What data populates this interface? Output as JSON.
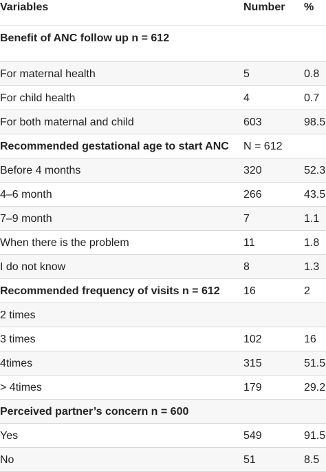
{
  "header": {
    "variables": "Variables",
    "number": "Number",
    "percent": "%"
  },
  "rows": [
    {
      "type": "section",
      "label": "Benefit of ANC follow up n = 612",
      "number": "",
      "percent": ""
    },
    {
      "type": "data",
      "label": "For maternal health",
      "number": "5",
      "percent": "0.8"
    },
    {
      "type": "data",
      "label": "For child health",
      "number": "4",
      "percent": "0.7"
    },
    {
      "type": "data",
      "label": "For both maternal and child",
      "number": "603",
      "percent": "98.5"
    },
    {
      "type": "section",
      "label": "Recommended gestational age to start ANC",
      "number": "N = 612",
      "percent": ""
    },
    {
      "type": "data",
      "label": "Before 4 months",
      "number": "320",
      "percent": "52.3"
    },
    {
      "type": "data",
      "label": "4–6 month",
      "number": "266",
      "percent": "43.5"
    },
    {
      "type": "data",
      "label": "7–9 month",
      "number": "7",
      "percent": "1.1"
    },
    {
      "type": "data",
      "label": "When there is the problem",
      "number": "11",
      "percent": "1.8"
    },
    {
      "type": "data",
      "label": "I do not know",
      "number": "8",
      "percent": "1.3"
    },
    {
      "type": "section",
      "label": "Recommended frequency of visits n = 612",
      "number": "16",
      "percent": "2"
    },
    {
      "type": "data",
      "label": "2 times",
      "number": "",
      "percent": ""
    },
    {
      "type": "data",
      "label": "3 times",
      "number": "102",
      "percent": "16"
    },
    {
      "type": "data",
      "label": "4times",
      "number": "315",
      "percent": "51.5"
    },
    {
      "type": "data",
      "label": "> 4times",
      "number": "179",
      "percent": "29.2"
    },
    {
      "type": "section",
      "label": "Perceived partner’s concern n = 600",
      "number": "",
      "percent": ""
    },
    {
      "type": "data",
      "label": "Yes",
      "number": "549",
      "percent": "91.5"
    },
    {
      "type": "data",
      "label": "No",
      "number": "51",
      "percent": "8.5"
    }
  ]
}
